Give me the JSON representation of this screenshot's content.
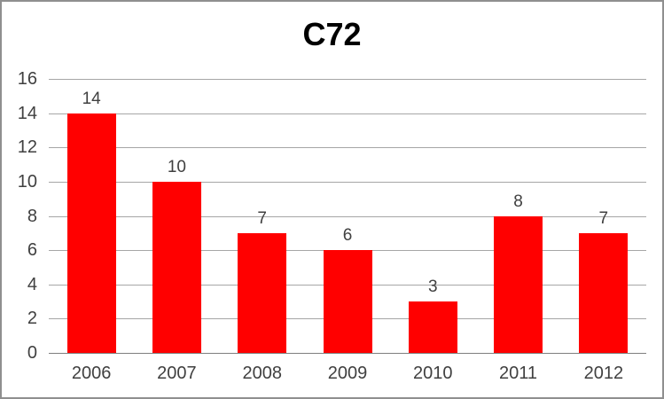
{
  "chart_data": {
    "type": "bar",
    "title": "C72",
    "categories": [
      "2006",
      "2007",
      "2008",
      "2009",
      "2010",
      "2011",
      "2012"
    ],
    "values": [
      14,
      10,
      7,
      6,
      3,
      8,
      7
    ],
    "data_labels": [
      "14",
      "10",
      "7",
      "6",
      "3",
      "8",
      "7"
    ],
    "xlabel": "",
    "ylabel": "",
    "ylim": [
      0,
      16
    ],
    "yticks": [
      0,
      2,
      4,
      6,
      8,
      10,
      12,
      14,
      16
    ],
    "grid": "horizontal",
    "legend_position": "none"
  },
  "colors": {
    "bar": "#ff0000",
    "gridline": "#a6a6a6",
    "axis_line": "#7f7f7f",
    "label_text": "#404040",
    "title_text": "#000000",
    "frame_border": "#8f8f8f",
    "background": "#ffffff"
  }
}
